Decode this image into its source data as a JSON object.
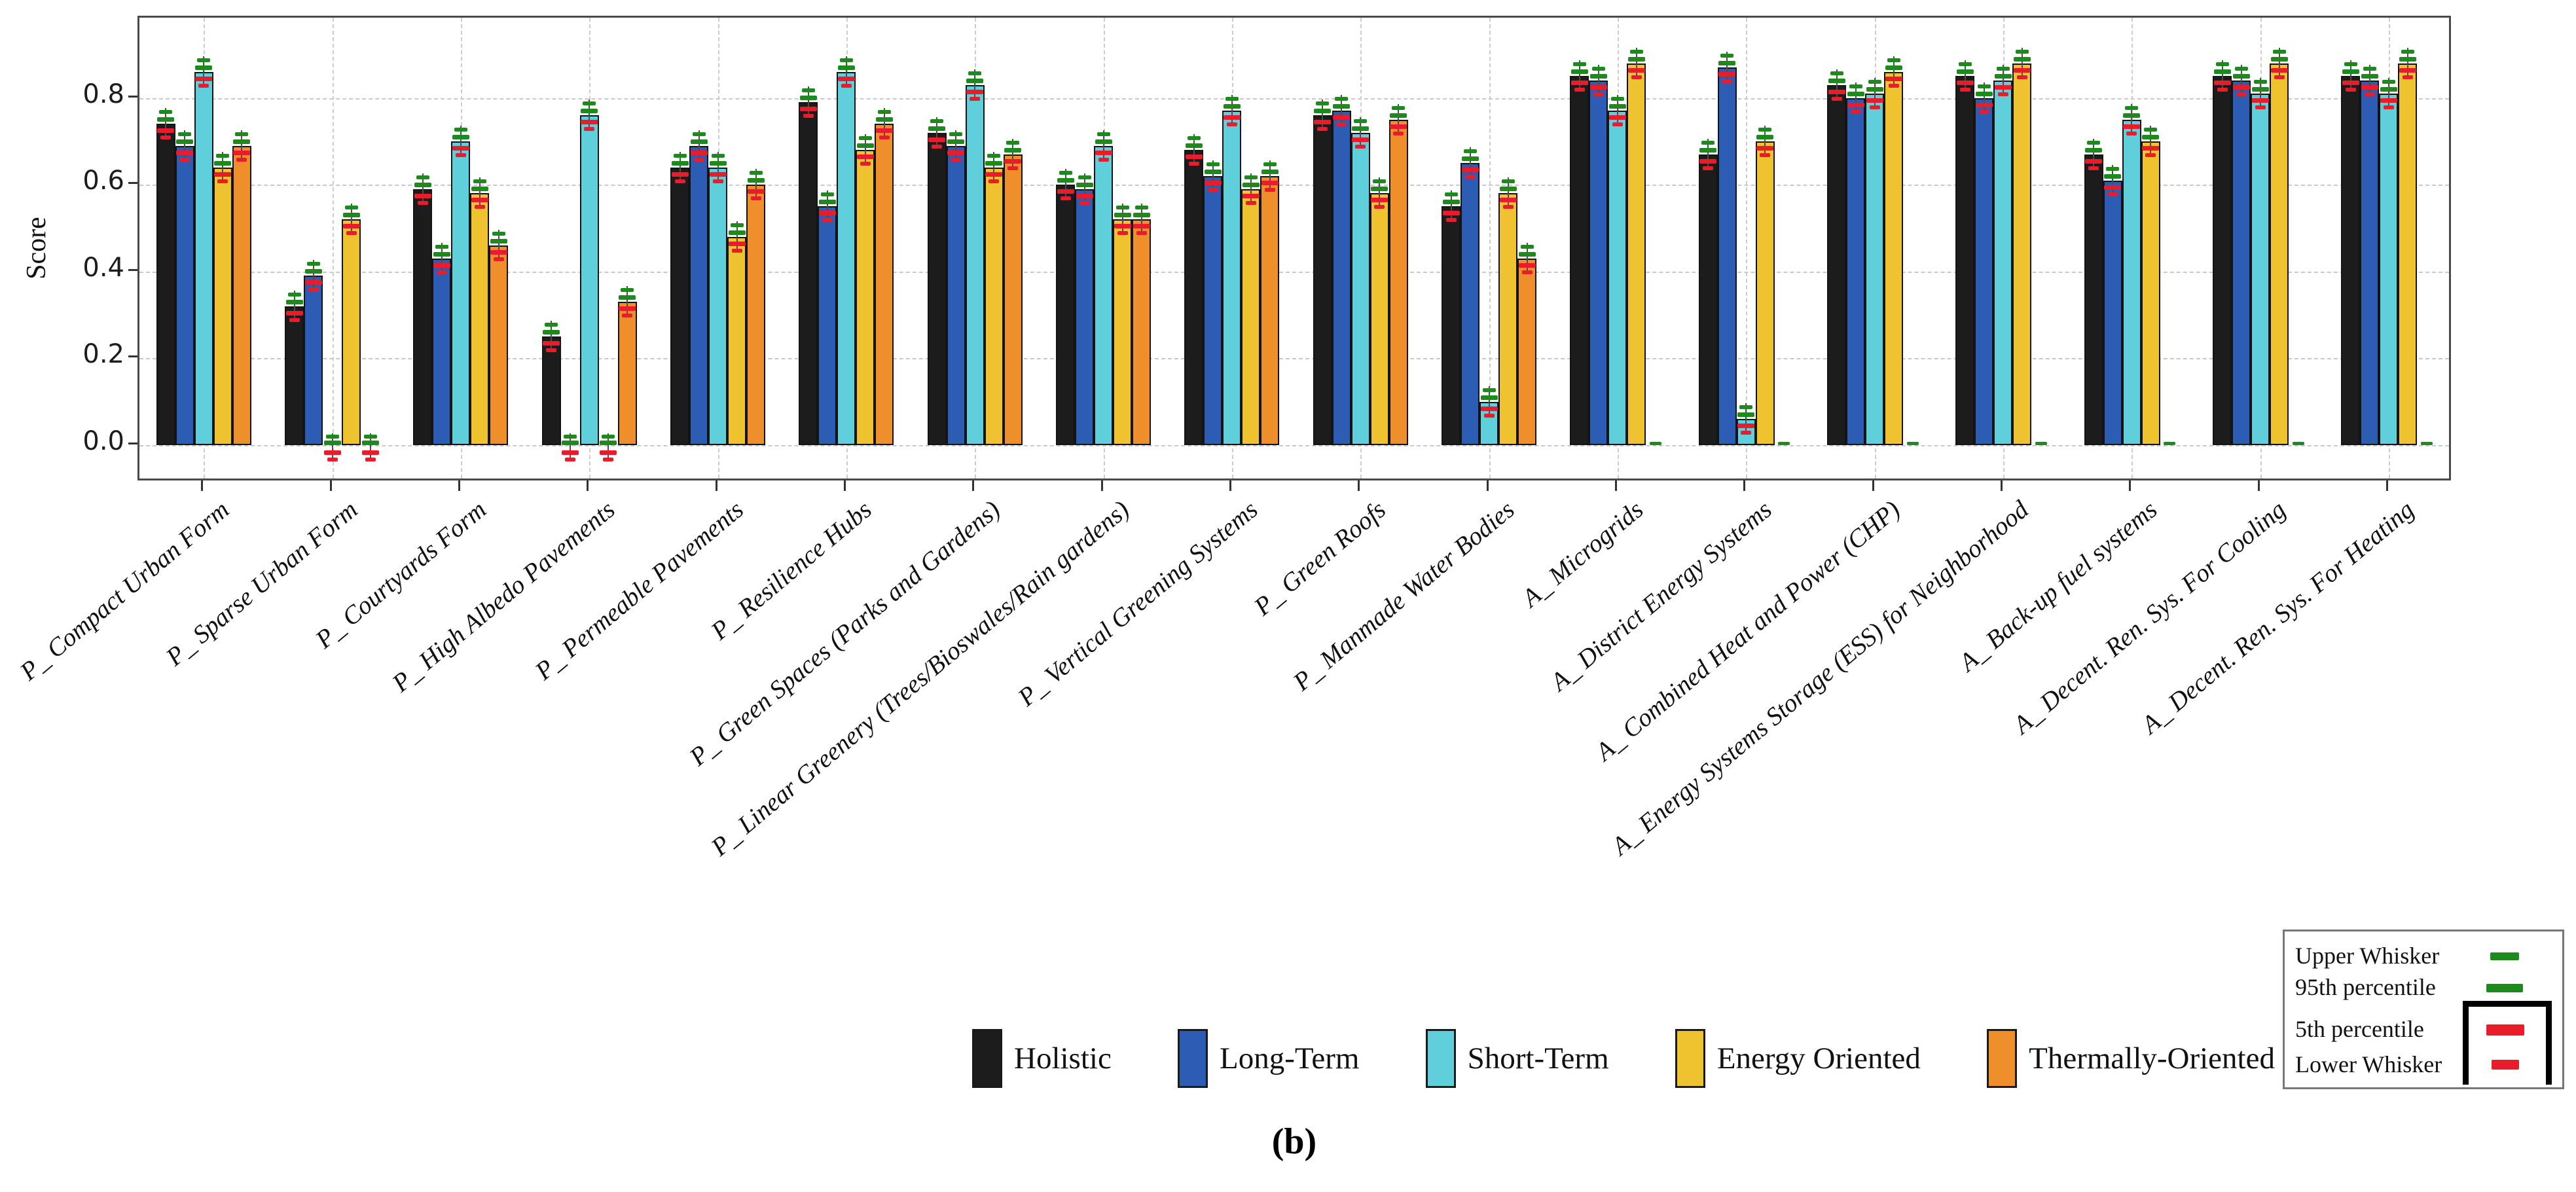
{
  "figure_caption": "(b)",
  "y_axis": {
    "label": "Score",
    "ticks": [
      {
        "label": "0.0",
        "value": 0.0
      },
      {
        "label": "0.2",
        "value": 0.2
      },
      {
        "label": "0.4",
        "value": 0.4
      },
      {
        "label": "0.6",
        "value": 0.6
      },
      {
        "label": "0.8",
        "value": 0.8
      }
    ]
  },
  "whisker_legend": {
    "rows": [
      {
        "label": "Upper Whisker",
        "mark": "green-dash"
      },
      {
        "label": "95th percentile",
        "mark": "green-dash"
      },
      {
        "label": "5th percentile",
        "mark": "red-dash-large"
      },
      {
        "label": "Lower Whisker",
        "mark": "red-dash-small"
      }
    ]
  },
  "style": {
    "whisker_up_color": "#1e8a1e",
    "whisker_low_color": "#ea1c2c",
    "grid_color": "#c9c9c9",
    "axis_color": "#4a4a4a",
    "background": "#ffffff"
  },
  "chart_data": {
    "type": "bar",
    "title": "",
    "xlabel": "",
    "ylabel": "Score",
    "ylim": [
      -0.086,
      0.985
    ],
    "grid": true,
    "legend_position": "bottom",
    "categories": [
      "P_ Compact Urban Form",
      "P_ Sparse Urban Form",
      "P_ Courtyards Form",
      "P_ High Albedo Pavements",
      "P_ Permeable Pavements",
      "P_ Resilience Hubs",
      "P_ Green Spaces (Parks and Gardens)",
      "P_ Linear Greenery (Trees/Bioswales/Rain gardens)",
      "P_ Vertical Greening Systems",
      "P_ Green Roofs",
      "P_ Manmade Water Bodies",
      "A_ Microgrids",
      "A_ District Energy Systems",
      "A_ Combined Heat and Power (CHP)",
      "A_ Energy Systems Storage (ESS) for Neighborhood",
      "A_ Back-up fuel systems",
      "A_ Decent. Ren. Sys. For Cooling",
      "A_ Decent. Ren. Sys. For Heating"
    ],
    "series": [
      {
        "name": "Holistic",
        "color": "#1c1c1c",
        "values": [
          0.74,
          0.32,
          0.59,
          0.25,
          0.64,
          0.79,
          0.72,
          0.6,
          0.68,
          0.76,
          0.55,
          0.85,
          0.67,
          0.83,
          0.85,
          0.67,
          0.85,
          0.85
        ]
      },
      {
        "name": "Long-Term",
        "color": "#2d5cb5",
        "values": [
          0.69,
          0.39,
          0.43,
          0.0,
          0.69,
          0.55,
          0.69,
          0.59,
          0.62,
          0.77,
          0.65,
          0.84,
          0.87,
          0.8,
          0.8,
          0.61,
          0.84,
          0.84
        ]
      },
      {
        "name": "Short-Term",
        "color": "#5ecfdb",
        "values": [
          0.86,
          0.0,
          0.7,
          0.76,
          0.64,
          0.86,
          0.83,
          0.69,
          0.77,
          0.72,
          0.1,
          0.77,
          0.06,
          0.81,
          0.84,
          0.75,
          0.81,
          0.81
        ]
      },
      {
        "name": "Energy Oriented",
        "color": "#efc230",
        "values": [
          0.64,
          0.52,
          0.58,
          0.0,
          0.48,
          0.68,
          0.64,
          0.52,
          0.59,
          0.58,
          0.58,
          0.88,
          0.7,
          0.86,
          0.88,
          0.7,
          0.88,
          0.88
        ]
      },
      {
        "name": "Thermally-Oriented",
        "color": "#ef8f2b",
        "values": [
          0.69,
          0.0,
          0.46,
          0.33,
          0.6,
          0.74,
          0.67,
          0.52,
          0.62,
          0.75,
          0.43,
          0.0,
          0.0,
          0.0,
          0.0,
          0.0,
          0.0,
          0.0
        ]
      }
    ],
    "error_bars": {
      "upper_whisker_color": "#1e8a1e",
      "percentile95_color": "#1e8a1e",
      "percentile5_color": "#ea1c2c",
      "lower_whisker_color": "#ea1c2c",
      "approx_offsets": {
        "upper": 0.029,
        "p95": 0.014,
        "p5": -0.014,
        "lower": -0.03
      }
    }
  }
}
